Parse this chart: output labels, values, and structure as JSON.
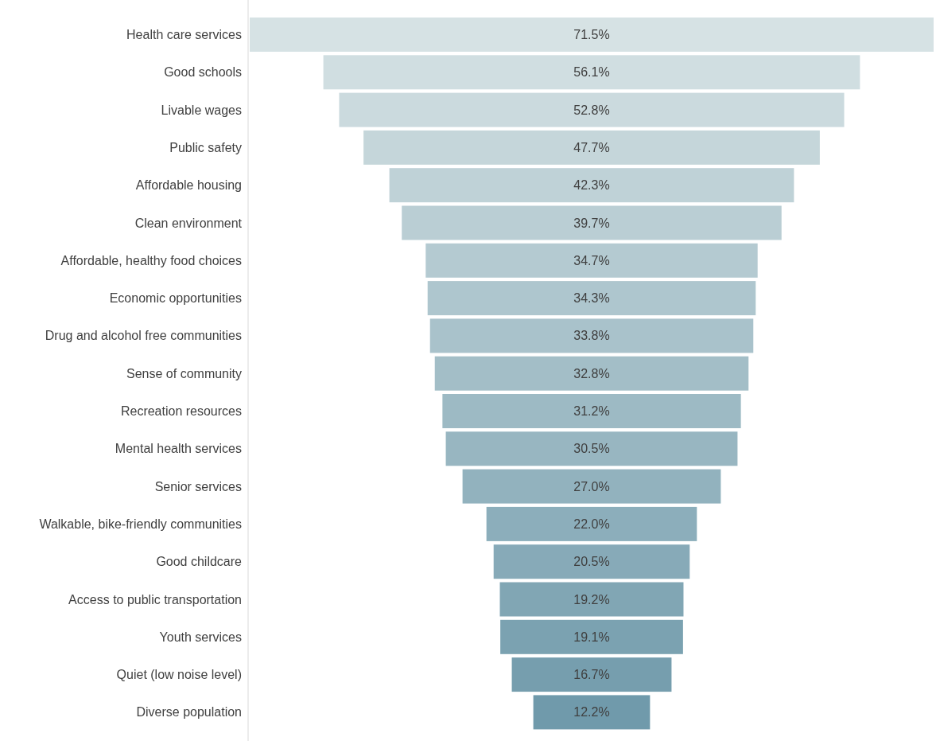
{
  "chart_data": {
    "type": "other",
    "categories": [
      "Health care services",
      "Good schools",
      "Livable wages",
      "Public safety",
      "Affordable housing",
      "Clean environment",
      "Affordable, healthy food choices",
      "Economic opportunities",
      "Drug and alcohol free communities",
      "Sense of community",
      "Recreation resources",
      "Mental health services",
      "Senior services",
      "Walkable, bike-friendly communities",
      "Good childcare",
      "Access to public transportation",
      "Youth services",
      "Quiet (low noise level)",
      "Diverse population"
    ],
    "values": [
      71.5,
      56.1,
      52.8,
      47.7,
      42.3,
      39.7,
      34.7,
      34.3,
      33.8,
      32.8,
      31.2,
      30.5,
      27.0,
      22.0,
      20.5,
      19.2,
      19.1,
      16.7,
      12.2
    ],
    "value_labels": [
      "71.5%",
      "56.1%",
      "52.8%",
      "47.7%",
      "42.3%",
      "39.7%",
      "34.7%",
      "34.3%",
      "33.8%",
      "32.8%",
      "31.2%",
      "30.5%",
      "27.0%",
      "22.0%",
      "20.5%",
      "19.2%",
      "19.1%",
      "16.7%",
      "12.2%"
    ],
    "colors": [
      "#d6e2e4",
      "#d0dee1",
      "#cbdade",
      "#c5d6da",
      "#bfd2d7",
      "#baced4",
      "#b4cad1",
      "#aec6ce",
      "#a9c2cb",
      "#a3bec7",
      "#9dbac4",
      "#98b6c1",
      "#92b2be",
      "#8caebb",
      "#87aab8",
      "#81a6b4",
      "#7ba2b1",
      "#769eae",
      "#709aab"
    ]
  }
}
